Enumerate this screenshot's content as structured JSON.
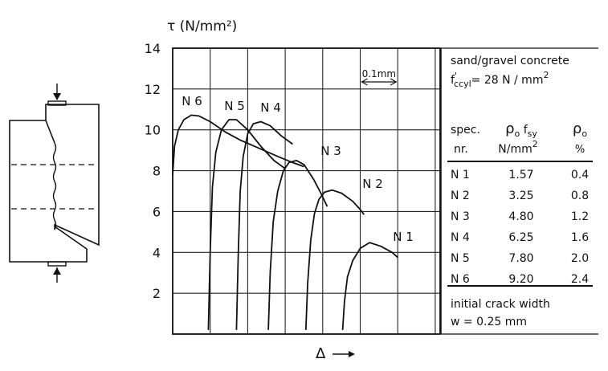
{
  "chart_data": {
    "type": "line",
    "ylabel": "τ (N/mm²)",
    "xlabel": "Δ",
    "x_arrow": "→",
    "x_scale_label": "0.1mm",
    "ylim": [
      0,
      14
    ],
    "y_ticks": [
      2,
      4,
      6,
      8,
      10,
      12,
      14
    ],
    "grid": true,
    "series": [
      {
        "name": "N 1",
        "points": [
          [
            4.53,
            0.2
          ],
          [
            4.58,
            1.6
          ],
          [
            4.66,
            2.8
          ],
          [
            4.8,
            3.6
          ],
          [
            5.0,
            4.2
          ],
          [
            5.25,
            4.48
          ],
          [
            5.55,
            4.3
          ],
          [
            5.85,
            4.0
          ],
          [
            6.0,
            3.75
          ]
        ]
      },
      {
        "name": "N 2",
        "points": [
          [
            3.55,
            0.2
          ],
          [
            3.6,
            2.5
          ],
          [
            3.68,
            4.6
          ],
          [
            3.78,
            5.9
          ],
          [
            3.9,
            6.6
          ],
          [
            4.05,
            6.95
          ],
          [
            4.25,
            7.05
          ],
          [
            4.5,
            6.9
          ],
          [
            4.8,
            6.5
          ],
          [
            5.0,
            6.1
          ],
          [
            5.1,
            5.85
          ]
        ]
      },
      {
        "name": "N 3",
        "points": [
          [
            2.55,
            0.2
          ],
          [
            2.6,
            3.0
          ],
          [
            2.68,
            5.5
          ],
          [
            2.8,
            7.0
          ],
          [
            2.95,
            8.0
          ],
          [
            3.1,
            8.4
          ],
          [
            3.3,
            8.5
          ],
          [
            3.5,
            8.3
          ],
          [
            3.75,
            7.6
          ],
          [
            3.95,
            6.9
          ],
          [
            4.12,
            6.25
          ]
        ]
      },
      {
        "name": "N 4",
        "points": [
          [
            1.7,
            0.2
          ],
          [
            1.75,
            4.0
          ],
          [
            1.8,
            7.0
          ],
          [
            1.88,
            8.7
          ],
          [
            2.0,
            9.8
          ],
          [
            2.15,
            10.3
          ],
          [
            2.35,
            10.4
          ],
          [
            2.6,
            10.2
          ],
          [
            2.9,
            9.7
          ],
          [
            3.2,
            9.3
          ]
        ]
      },
      {
        "name": "N 5",
        "points": [
          [
            0.95,
            0.2
          ],
          [
            1.0,
            4.0
          ],
          [
            1.06,
            7.2
          ],
          [
            1.15,
            8.9
          ],
          [
            1.3,
            10.0
          ],
          [
            1.5,
            10.5
          ],
          [
            1.7,
            10.5
          ],
          [
            2.0,
            10.0
          ],
          [
            2.35,
            9.2
          ],
          [
            2.7,
            8.5
          ],
          [
            3.0,
            8.1
          ]
        ]
      },
      {
        "name": "N 6",
        "points": [
          [
            0.0,
            7.8
          ],
          [
            0.05,
            9.2
          ],
          [
            0.15,
            10.0
          ],
          [
            0.3,
            10.5
          ],
          [
            0.5,
            10.72
          ],
          [
            0.7,
            10.68
          ],
          [
            1.0,
            10.4
          ],
          [
            1.4,
            9.9
          ],
          [
            1.8,
            9.5
          ],
          [
            2.3,
            9.1
          ],
          [
            2.8,
            8.7
          ],
          [
            3.2,
            8.4
          ],
          [
            3.5,
            8.2
          ]
        ]
      }
    ],
    "label_positions_note": "",
    "legend_box": {
      "title_line1": "sand/gravel concrete",
      "title_line2_pre": "f",
      "title_line2_sup": "'",
      "title_line2_sub": "ccyl",
      "title_line2_post": "= 28 N / mm",
      "title_line2_exp": "2",
      "col1_head1": "spec.",
      "col1_head2": "nr.",
      "col2_head1_a": "ρ",
      "col2_head1_sub1": "o",
      "col2_head1_b": " f",
      "col2_head1_sub2": "sy",
      "col2_head2": "N/mm",
      "col2_head2_exp": "2",
      "col3_head1": "ρ",
      "col3_head1_sub": "o",
      "col3_head2": "%",
      "rows": [
        {
          "spec": "N 1",
          "rho_fsy": "1.57",
          "rho": "0.4"
        },
        {
          "spec": "N 2",
          "rho_fsy": "3.25",
          "rho": "0.8"
        },
        {
          "spec": "N 3",
          "rho_fsy": "4.80",
          "rho": "1.2"
        },
        {
          "spec": "N 4",
          "rho_fsy": "6.25",
          "rho": "1.6"
        },
        {
          "spec": "N 5",
          "rho_fsy": "7.80",
          "rho": "2.0"
        },
        {
          "spec": "N 6",
          "rho_fsy": "9.20",
          "rho": "2.4"
        }
      ],
      "footer1": "initial crack width",
      "footer2": "w = 0.25 mm"
    }
  }
}
